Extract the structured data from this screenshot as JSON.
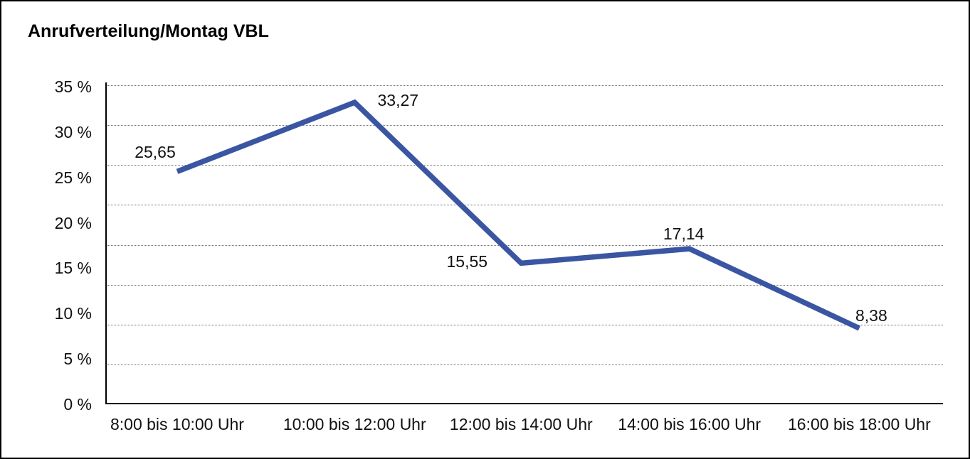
{
  "page": {
    "title": "Anrufverteilung/Montag VBL"
  },
  "chart_data": {
    "type": "line",
    "title": "Anrufverteilung/Montag VBL",
    "categories": [
      "8:00 bis 10:00 Uhr",
      "10:00 bis 12:00 Uhr",
      "12:00 bis 14:00 Uhr",
      "14:00 bis 16:00 Uhr",
      "16:00 bis 18:00 Uhr"
    ],
    "values": [
      25.65,
      33.27,
      15.55,
      17.14,
      8.38
    ],
    "value_labels": [
      "25,65",
      "33,27",
      "15,55",
      "17,14",
      "8,38"
    ],
    "unit": "%",
    "xlabel": "",
    "ylabel": "",
    "ylim": [
      0,
      35
    ],
    "y_tick_values": [
      35,
      30,
      25,
      20,
      15,
      10,
      5,
      0
    ],
    "y_tick_labels": [
      "35 %",
      "30 %",
      "25 %",
      "20 %",
      "15 %",
      "10 %",
      "5 %",
      "0 %"
    ],
    "grid": "horizontal-dotted",
    "legend": "none",
    "line_color": "#3A55A2",
    "axis_color": "#000000",
    "gridline_color": "#6e6e6e",
    "text_color": "#111111"
  }
}
